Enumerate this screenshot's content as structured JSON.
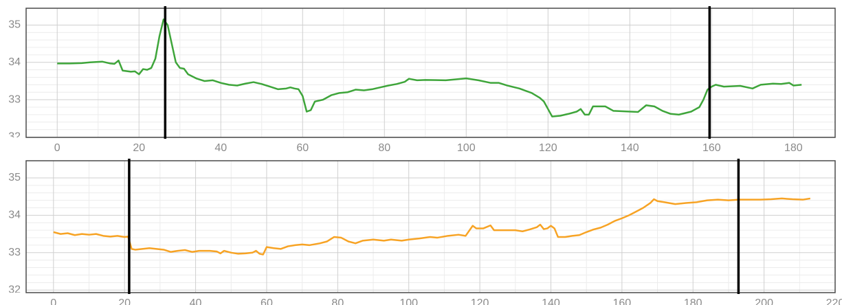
{
  "chart_data": [
    {
      "type": "line",
      "color": "#3ea53a",
      "grid": true,
      "xlim": [
        -7.6,
        190.2
      ],
      "ylim": [
        31.99,
        35.45
      ],
      "xticks": [
        0,
        20,
        40,
        60,
        80,
        100,
        120,
        140,
        160,
        180
      ],
      "yticks": [
        32,
        33,
        34,
        35
      ],
      "markers": [
        26.4,
        159.5
      ],
      "x": [
        0,
        3,
        6,
        8,
        11,
        13,
        14,
        15,
        16,
        18,
        19,
        20,
        21,
        22,
        23,
        24,
        25,
        26,
        27,
        28,
        29,
        30,
        31,
        32,
        34,
        36,
        38,
        40,
        42,
        44,
        46,
        48,
        50,
        52,
        54,
        56,
        57,
        58,
        59,
        60,
        61,
        62,
        63,
        65,
        67,
        69,
        71,
        73,
        75,
        77,
        79,
        81,
        83,
        85,
        86,
        88,
        90,
        95,
        100,
        103,
        106,
        108,
        110,
        113,
        116,
        118,
        119,
        120,
        121,
        123,
        125,
        127,
        128,
        129,
        130,
        131,
        134,
        136,
        142,
        144,
        146,
        148,
        150,
        152,
        155,
        157,
        158,
        159,
        160,
        161,
        163,
        167,
        170,
        172,
        175,
        177,
        179,
        180,
        182
      ],
      "values": [
        33.97,
        33.97,
        33.98,
        34.0,
        34.02,
        33.97,
        33.96,
        34.05,
        33.78,
        33.75,
        33.76,
        33.68,
        33.82,
        33.8,
        33.85,
        34.1,
        34.7,
        35.15,
        35.0,
        34.5,
        34.0,
        33.85,
        33.83,
        33.68,
        33.57,
        33.5,
        33.52,
        33.45,
        33.4,
        33.38,
        33.43,
        33.47,
        33.42,
        33.35,
        33.28,
        33.3,
        33.33,
        33.3,
        33.28,
        33.1,
        32.68,
        32.72,
        32.95,
        33.0,
        33.12,
        33.18,
        33.2,
        33.27,
        33.25,
        33.28,
        33.33,
        33.38,
        33.42,
        33.48,
        33.56,
        33.52,
        33.53,
        33.52,
        33.57,
        33.52,
        33.45,
        33.45,
        33.38,
        33.3,
        33.18,
        33.05,
        32.95,
        32.75,
        32.55,
        32.57,
        32.62,
        32.68,
        32.75,
        32.6,
        32.6,
        32.82,
        32.82,
        32.7,
        32.67,
        32.85,
        32.82,
        32.7,
        32.62,
        32.6,
        32.68,
        32.8,
        33.0,
        33.27,
        33.35,
        33.4,
        33.35,
        33.37,
        33.3,
        33.4,
        33.43,
        33.42,
        33.45,
        33.38,
        33.4
      ]
    },
    {
      "type": "line",
      "color": "#f7a324",
      "grid": true,
      "xlim": [
        -7.7,
        220
      ],
      "ylim": [
        31.93,
        35.46
      ],
      "xticks": [
        0,
        20,
        40,
        60,
        80,
        100,
        120,
        140,
        160,
        180,
        200,
        220
      ],
      "yticks": [
        32,
        33,
        34,
        35
      ],
      "markers": [
        21.3,
        192.8
      ],
      "x": [
        0,
        2,
        4,
        6,
        8,
        10,
        12,
        14,
        16,
        18,
        20,
        21,
        22,
        23,
        25,
        27,
        29,
        31,
        33,
        35,
        37,
        39,
        41,
        44,
        46,
        47,
        48,
        50,
        52,
        54,
        56,
        57,
        58,
        59,
        60,
        62,
        64,
        66,
        68,
        70,
        72,
        75,
        77,
        79,
        81,
        83,
        85,
        87,
        90,
        93,
        95,
        98,
        100,
        103,
        106,
        108,
        111,
        114,
        116,
        118,
        119,
        121,
        123,
        124,
        127,
        130,
        132,
        134,
        136,
        137,
        138,
        139,
        140,
        141,
        142,
        144,
        146,
        148,
        150,
        152,
        154,
        156,
        158,
        160,
        162,
        164,
        166,
        168,
        169,
        170,
        172,
        175,
        178,
        181,
        184,
        187,
        190,
        193,
        196,
        199,
        202,
        205,
        208,
        211,
        213
      ],
      "values": [
        33.55,
        33.5,
        33.52,
        33.47,
        33.5,
        33.48,
        33.5,
        33.45,
        33.43,
        33.45,
        33.42,
        33.43,
        33.1,
        33.08,
        33.1,
        33.12,
        33.1,
        33.08,
        33.02,
        33.05,
        33.07,
        33.02,
        33.05,
        33.05,
        33.03,
        32.98,
        33.05,
        33.0,
        32.97,
        32.98,
        33.0,
        33.05,
        32.97,
        32.95,
        33.15,
        33.12,
        33.1,
        33.17,
        33.2,
        33.22,
        33.2,
        33.25,
        33.3,
        33.42,
        33.4,
        33.3,
        33.25,
        33.32,
        33.35,
        33.32,
        33.35,
        33.32,
        33.35,
        33.38,
        33.42,
        33.4,
        33.45,
        33.48,
        33.45,
        33.72,
        33.65,
        33.65,
        33.73,
        33.6,
        33.6,
        33.6,
        33.57,
        33.62,
        33.68,
        33.75,
        33.63,
        33.65,
        33.72,
        33.65,
        33.42,
        33.42,
        33.45,
        33.47,
        33.55,
        33.62,
        33.67,
        33.75,
        33.85,
        33.92,
        34.0,
        34.1,
        34.2,
        34.33,
        34.43,
        34.38,
        34.35,
        34.3,
        34.33,
        34.35,
        34.4,
        34.42,
        34.4,
        34.42,
        34.42,
        34.42,
        34.43,
        34.45,
        34.43,
        34.42,
        34.45
      ]
    }
  ]
}
